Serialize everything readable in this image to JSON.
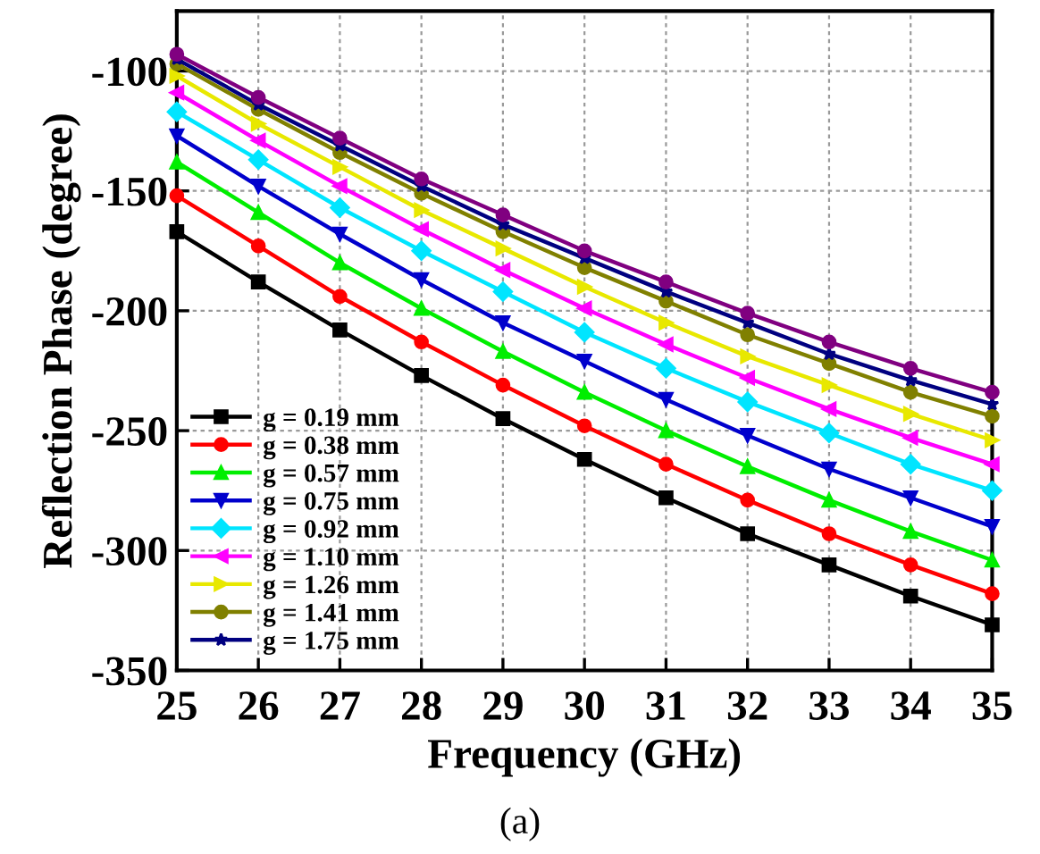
{
  "chart_data": {
    "type": "line",
    "xlabel": "Frequency (GHz)",
    "ylabel": "Reflection Phase (degree)",
    "annotations": [
      "(a)"
    ],
    "x": [
      25,
      26,
      27,
      28,
      29,
      30,
      31,
      32,
      33,
      34,
      35
    ],
    "xlim": [
      25,
      35
    ],
    "xticks": [
      25,
      26,
      27,
      28,
      29,
      30,
      31,
      32,
      33,
      34,
      35
    ],
    "ylim": [
      -350,
      -75
    ],
    "yticks": [
      -350,
      -300,
      -250,
      -200,
      -150,
      -100
    ],
    "grid": true,
    "legend": "bottom left",
    "line_style": "solid",
    "series": [
      {
        "name": "g = 0.19 mm",
        "color": "#000000",
        "marker": "square",
        "values": [
          -167,
          -188,
          -208,
          -227,
          -245,
          -262,
          -278,
          -293,
          -306,
          -319,
          -331
        ]
      },
      {
        "name": "g = 0.38 mm",
        "color": "#ff0000",
        "marker": "circle",
        "values": [
          -152,
          -173,
          -194,
          -213,
          -231,
          -248,
          -264,
          -279,
          -293,
          -306,
          -318
        ]
      },
      {
        "name": "g = 0.57 mm",
        "color": "#00ee00",
        "marker": "triangle",
        "values": [
          -138,
          -159,
          -180,
          -199,
          -217,
          -234,
          -250,
          -265,
          -279,
          -292,
          -304
        ]
      },
      {
        "name": "g = 0.75 mm",
        "color": "#0000cc",
        "marker": "triangle_down",
        "values": [
          -127,
          -148,
          -168,
          -187,
          -205,
          -221,
          -237,
          -252,
          -266,
          -278,
          -290
        ]
      },
      {
        "name": "g = 0.92 mm",
        "color": "#00e5ff",
        "marker": "diamond",
        "values": [
          -117,
          -137,
          -157,
          -175,
          -192,
          -209,
          -224,
          -238,
          -251,
          -264,
          -275
        ]
      },
      {
        "name": "g = 1.10 mm",
        "color": "#ff00ff",
        "marker": "triangle_left",
        "values": [
          -109,
          -129,
          -148,
          -166,
          -183,
          -199,
          -214,
          -228,
          -241,
          -253,
          -264
        ]
      },
      {
        "name": "g = 1.26 mm",
        "color": "#e8e800",
        "marker": "triangle_right",
        "values": [
          -102,
          -122,
          -140,
          -158,
          -174,
          -190,
          -205,
          -219,
          -231,
          -243,
          -254
        ]
      },
      {
        "name": "g = 1.41 mm",
        "color": "#808000",
        "marker": "circle",
        "values": [
          -97,
          -116,
          -134,
          -151,
          -167,
          -182,
          -196,
          -210,
          -222,
          -234,
          -244
        ]
      },
      {
        "name": "g = 1.75 mm",
        "color": "#000080",
        "marker": "star",
        "values": [
          -95,
          -114,
          -131,
          -148,
          -164,
          -178,
          -192,
          -205,
          -218,
          -229,
          -239
        ]
      },
      {
        "color": "#800080",
        "marker": "circle",
        "values": [
          -93,
          -111,
          -128,
          -145,
          -160,
          -175,
          -188,
          -201,
          -213,
          -224,
          -234
        ]
      }
    ]
  }
}
